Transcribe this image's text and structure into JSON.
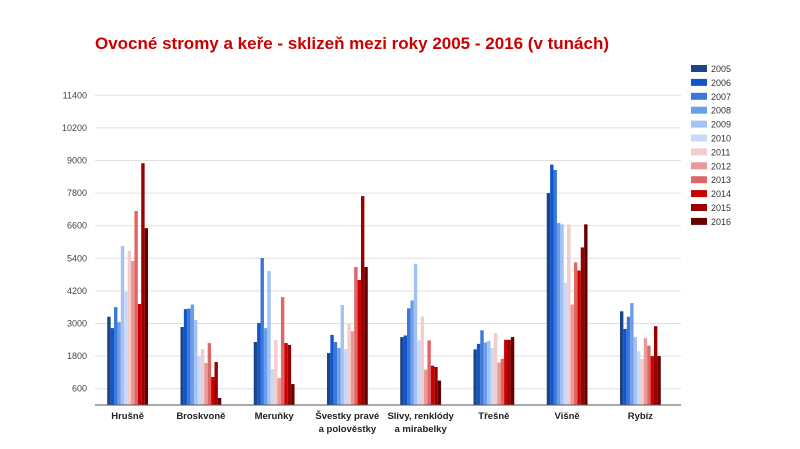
{
  "chart_data": {
    "type": "bar",
    "title": "Ovocné stromy a keře - sklizeň mezi roky 2005 - 2016 (v tunách)",
    "xlabel": "",
    "ylabel": "",
    "ylim": [
      0,
      11400
    ],
    "yticks": [
      600,
      1800,
      3000,
      4200,
      5400,
      6600,
      7800,
      9000,
      10200,
      11400
    ],
    "grid": true,
    "legend_position": "right",
    "categories": [
      [
        "Hrušně"
      ],
      [
        "Broskvoně"
      ],
      [
        "Meruňky"
      ],
      [
        "Švestky pravé",
        "a polověstky"
      ],
      [
        "Slivy, renklódy",
        "a mirabelky"
      ],
      [
        "Třešně"
      ],
      [
        "Višně"
      ],
      [
        "Rybíz"
      ]
    ],
    "series": [
      {
        "name": "2005",
        "color": "#1c4587",
        "values": [
          3250,
          2870,
          2320,
          1910,
          2500,
          2050,
          7800,
          3450
        ]
      },
      {
        "name": "2006",
        "color": "#1155cc",
        "values": [
          2830,
          3530,
          3020,
          2580,
          2560,
          2250,
          8850,
          2800
        ]
      },
      {
        "name": "2007",
        "color": "#3c78d8",
        "values": [
          3600,
          3550,
          5410,
          2320,
          3560,
          2750,
          8650,
          3250
        ]
      },
      {
        "name": "2008",
        "color": "#6d9eeb",
        "values": [
          3050,
          3700,
          2830,
          2100,
          3850,
          2300,
          6700,
          3750
        ]
      },
      {
        "name": "2009",
        "color": "#a4c2f4",
        "values": [
          5850,
          3130,
          4930,
          3680,
          5200,
          2360,
          6650,
          2500
        ]
      },
      {
        "name": "2010",
        "color": "#c9daf8",
        "values": [
          4160,
          1800,
          1320,
          2060,
          2380,
          2100,
          4500,
          1980
        ]
      },
      {
        "name": "2011",
        "color": "#f4cccc",
        "values": [
          5670,
          2060,
          2390,
          2980,
          3260,
          2650,
          6650,
          1700
        ]
      },
      {
        "name": "2012",
        "color": "#ea9999",
        "values": [
          5300,
          1550,
          990,
          2720,
          1300,
          1560,
          3700,
          2460
        ]
      },
      {
        "name": "2013",
        "color": "#e06666",
        "values": [
          7140,
          2280,
          3970,
          5080,
          2380,
          1700,
          5250,
          2180
        ]
      },
      {
        "name": "2014",
        "color": "#cc0000",
        "values": [
          3720,
          1030,
          2280,
          4600,
          1450,
          2400,
          4950,
          1800
        ]
      },
      {
        "name": "2015",
        "color": "#990000",
        "values": [
          8900,
          1580,
          2210,
          7690,
          1400,
          2400,
          5800,
          2900
        ]
      },
      {
        "name": "2016",
        "color": "#660000",
        "values": [
          6510,
          260,
          770,
          5080,
          900,
          2500,
          6650,
          1800
        ]
      }
    ]
  }
}
